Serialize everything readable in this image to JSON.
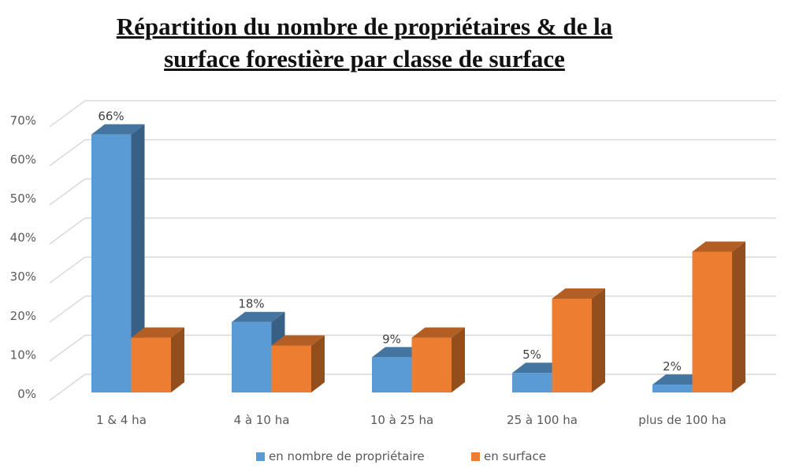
{
  "chart_data": {
    "type": "bar",
    "title_lines": [
      "Répartition du nombre de propriétaires & de la",
      "surface forestière par classe de surface"
    ],
    "categories": [
      "1 & 4 ha",
      "4 à 10 ha",
      "10 à 25 ha",
      "25 à 100 ha",
      "plus de 100 ha"
    ],
    "series": [
      {
        "name": "en nombre de propriétaire",
        "values": [
          66,
          18,
          9,
          5,
          2
        ],
        "color": "#5B9BD5",
        "labels": [
          "66%",
          "18%",
          "9%",
          "5%",
          "2%"
        ]
      },
      {
        "name": "en surface",
        "values": [
          14,
          12,
          14,
          24,
          36
        ],
        "color": "#ED7D31"
      }
    ],
    "yticks": [
      "0%",
      "10%",
      "20%",
      "30%",
      "40%",
      "50%",
      "60%",
      "70%"
    ],
    "ylim": [
      0,
      70
    ],
    "xlabel": "",
    "ylabel": "",
    "grid": true,
    "legend": "bottom"
  }
}
